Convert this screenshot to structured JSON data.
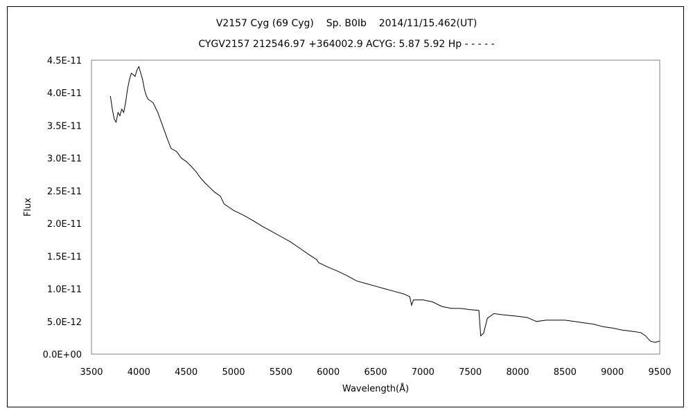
{
  "chart_data": {
    "type": "line",
    "title": "V2157 Cyg (69 Cyg)    Sp. B0Ib    2014/11/15.462(UT)",
    "subtitle": "CYGV2157 212546.97 +364002.9 ACYG: 5.87 5.92 Hp - - - - -",
    "xlabel": "Wavelength(Å)",
    "ylabel": "Flux",
    "xlim": [
      3500,
      9500
    ],
    "ylim": [
      0,
      4.5e-11
    ],
    "x_ticks": [
      3500,
      4000,
      4500,
      5000,
      5500,
      6000,
      6500,
      7000,
      7500,
      8000,
      8500,
      9000,
      9500
    ],
    "x_tick_labels": [
      "3500",
      "4000",
      "4500",
      "5000",
      "5500",
      "6000",
      "6500",
      "7000",
      "7500",
      "8000",
      "8500",
      "9000",
      "9500"
    ],
    "y_ticks": [
      0,
      5e-12,
      1e-11,
      1.5e-11,
      2e-11,
      2.5e-11,
      3e-11,
      3.5e-11,
      4e-11,
      4.5e-11
    ],
    "y_tick_labels": [
      "0.0E+00",
      "5.0E-12",
      "1.0E-11",
      "1.5E-11",
      "2.0E-11",
      "2.5E-11",
      "3.0E-11",
      "3.5E-11",
      "4.0E-11",
      "4.5E-11"
    ],
    "grid": false,
    "series": [
      {
        "color": "#000000",
        "points": [
          [
            3700,
            3.95e-11
          ],
          [
            3720,
            3.75e-11
          ],
          [
            3740,
            3.6e-11
          ],
          [
            3760,
            3.55e-11
          ],
          [
            3780,
            3.7e-11
          ],
          [
            3800,
            3.65e-11
          ],
          [
            3820,
            3.75e-11
          ],
          [
            3840,
            3.7e-11
          ],
          [
            3860,
            3.85e-11
          ],
          [
            3880,
            4.05e-11
          ],
          [
            3900,
            4.2e-11
          ],
          [
            3920,
            4.3e-11
          ],
          [
            3940,
            4.28e-11
          ],
          [
            3960,
            4.25e-11
          ],
          [
            3980,
            4.35e-11
          ],
          [
            4000,
            4.4e-11
          ],
          [
            4020,
            4.3e-11
          ],
          [
            4040,
            4.2e-11
          ],
          [
            4060,
            4.05e-11
          ],
          [
            4080,
            3.95e-11
          ],
          [
            4100,
            3.9e-11
          ],
          [
            4150,
            3.85e-11
          ],
          [
            4200,
            3.7e-11
          ],
          [
            4250,
            3.5e-11
          ],
          [
            4300,
            3.3e-11
          ],
          [
            4340,
            3.15e-11
          ],
          [
            4400,
            3.1e-11
          ],
          [
            4450,
            3e-11
          ],
          [
            4500,
            2.95e-11
          ],
          [
            4550,
            2.88e-11
          ],
          [
            4600,
            2.8e-11
          ],
          [
            4650,
            2.7e-11
          ],
          [
            4700,
            2.62e-11
          ],
          [
            4750,
            2.55e-11
          ],
          [
            4800,
            2.48e-11
          ],
          [
            4860,
            2.42e-11
          ],
          [
            4900,
            2.3e-11
          ],
          [
            4950,
            2.25e-11
          ],
          [
            5000,
            2.2e-11
          ],
          [
            5100,
            2.13e-11
          ],
          [
            5200,
            2.05e-11
          ],
          [
            5300,
            1.96e-11
          ],
          [
            5400,
            1.88e-11
          ],
          [
            5500,
            1.8e-11
          ],
          [
            5600,
            1.72e-11
          ],
          [
            5700,
            1.62e-11
          ],
          [
            5800,
            1.52e-11
          ],
          [
            5876,
            1.45e-11
          ],
          [
            5900,
            1.4e-11
          ],
          [
            6000,
            1.33e-11
          ],
          [
            6100,
            1.27e-11
          ],
          [
            6200,
            1.2e-11
          ],
          [
            6300,
            1.12e-11
          ],
          [
            6400,
            1.08e-11
          ],
          [
            6500,
            1.04e-11
          ],
          [
            6600,
            1e-11
          ],
          [
            6700,
            9.6e-12
          ],
          [
            6800,
            9.2e-12
          ],
          [
            6860,
            8.8e-12
          ],
          [
            6880,
            7.5e-12
          ],
          [
            6900,
            8.3e-12
          ],
          [
            7000,
            8.3e-12
          ],
          [
            7100,
            8e-12
          ],
          [
            7200,
            7.3e-12
          ],
          [
            7300,
            7e-12
          ],
          [
            7400,
            7e-12
          ],
          [
            7500,
            6.8e-12
          ],
          [
            7590,
            6.7e-12
          ],
          [
            7610,
            2.8e-12
          ],
          [
            7640,
            3.2e-12
          ],
          [
            7680,
            5.5e-12
          ],
          [
            7750,
            6.2e-12
          ],
          [
            7850,
            6e-12
          ],
          [
            8000,
            5.8e-12
          ],
          [
            8100,
            5.6e-12
          ],
          [
            8200,
            5e-12
          ],
          [
            8300,
            5.2e-12
          ],
          [
            8400,
            5.2e-12
          ],
          [
            8500,
            5.2e-12
          ],
          [
            8600,
            5e-12
          ],
          [
            8700,
            4.8e-12
          ],
          [
            8800,
            4.6e-12
          ],
          [
            8900,
            4.2e-12
          ],
          [
            9000,
            4e-12
          ],
          [
            9100,
            3.7e-12
          ],
          [
            9200,
            3.5e-12
          ],
          [
            9300,
            3.3e-12
          ],
          [
            9350,
            2.8e-12
          ],
          [
            9400,
            2e-12
          ],
          [
            9450,
            1.8e-12
          ],
          [
            9500,
            2e-12
          ]
        ]
      }
    ]
  }
}
